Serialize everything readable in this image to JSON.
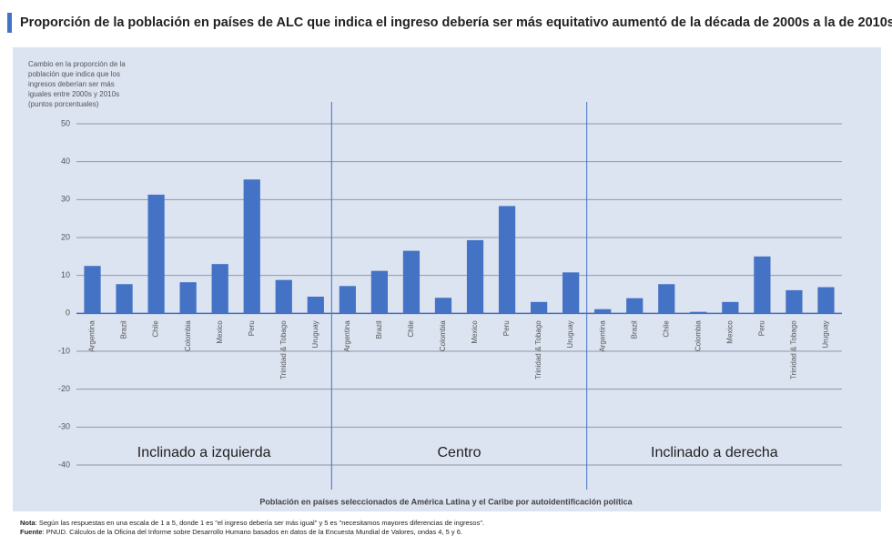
{
  "chart_data": {
    "type": "bar",
    "title": "Proporción de la población en países de ALC que indica el ingreso debería ser más equitativo aumentó de la década de 2000s a la de 2010s",
    "y_label": [
      "Cambio en la proporción de la",
      "población que indica que los",
      "ingresos deberían ser más",
      "iguales entre 2000s y 2010s",
      "(puntos porcentuales)"
    ],
    "x_label": "Población en países seleccionados de América Latina y el Caribe por autoidentificación política",
    "color": "#4472c4",
    "ylim": [
      -40,
      50
    ],
    "yticks": [
      -40,
      -30,
      -20,
      -10,
      0,
      10,
      20,
      30,
      40,
      50
    ],
    "grid": true,
    "groups": [
      {
        "label": "Inclinado a izquierda",
        "categories": [
          "Argentina",
          "Brazil",
          "Chile",
          "Colombia",
          "Mexico",
          "Peru",
          "Trinidad & Tobago",
          "Uruguay"
        ],
        "values": [
          12.5,
          7.7,
          31.3,
          8.2,
          13,
          35.3,
          8.8,
          4.4
        ]
      },
      {
        "label": "Centro",
        "categories": [
          "Argentina",
          "Brazil",
          "Chile",
          "Colombia",
          "Mexico",
          "Peru",
          "Trinidad & Tobago",
          "Uruguay"
        ],
        "values": [
          7.2,
          11.2,
          16.5,
          4.1,
          19.3,
          28.3,
          3,
          10.8
        ]
      },
      {
        "label": "Inclinado a derecha",
        "categories": [
          "Argentina",
          "Brazil",
          "Chile",
          "Colombia",
          "Mexico",
          "Peru",
          "Trinidad & Tobago",
          "Uruguay"
        ],
        "values": [
          1.1,
          4,
          7.7,
          0.4,
          3,
          15,
          6.1,
          6.9
        ]
      }
    ],
    "notes": [
      {
        "label": "Nota",
        "text": ": Según las respuestas en una escala de 1 a 5, donde 1 es \"el ingreso debería ser más igual\" y 5 es \"necesitamos mayores diferencias de ingresos\"."
      },
      {
        "label": "Fuente",
        "text": ": PNUD. Cálculos de la Oficina del Informe sobre Desarrollo Humano basados en datos de la Encuesta Mundial de Valores, ondas 4, 5 y 6."
      }
    ]
  }
}
